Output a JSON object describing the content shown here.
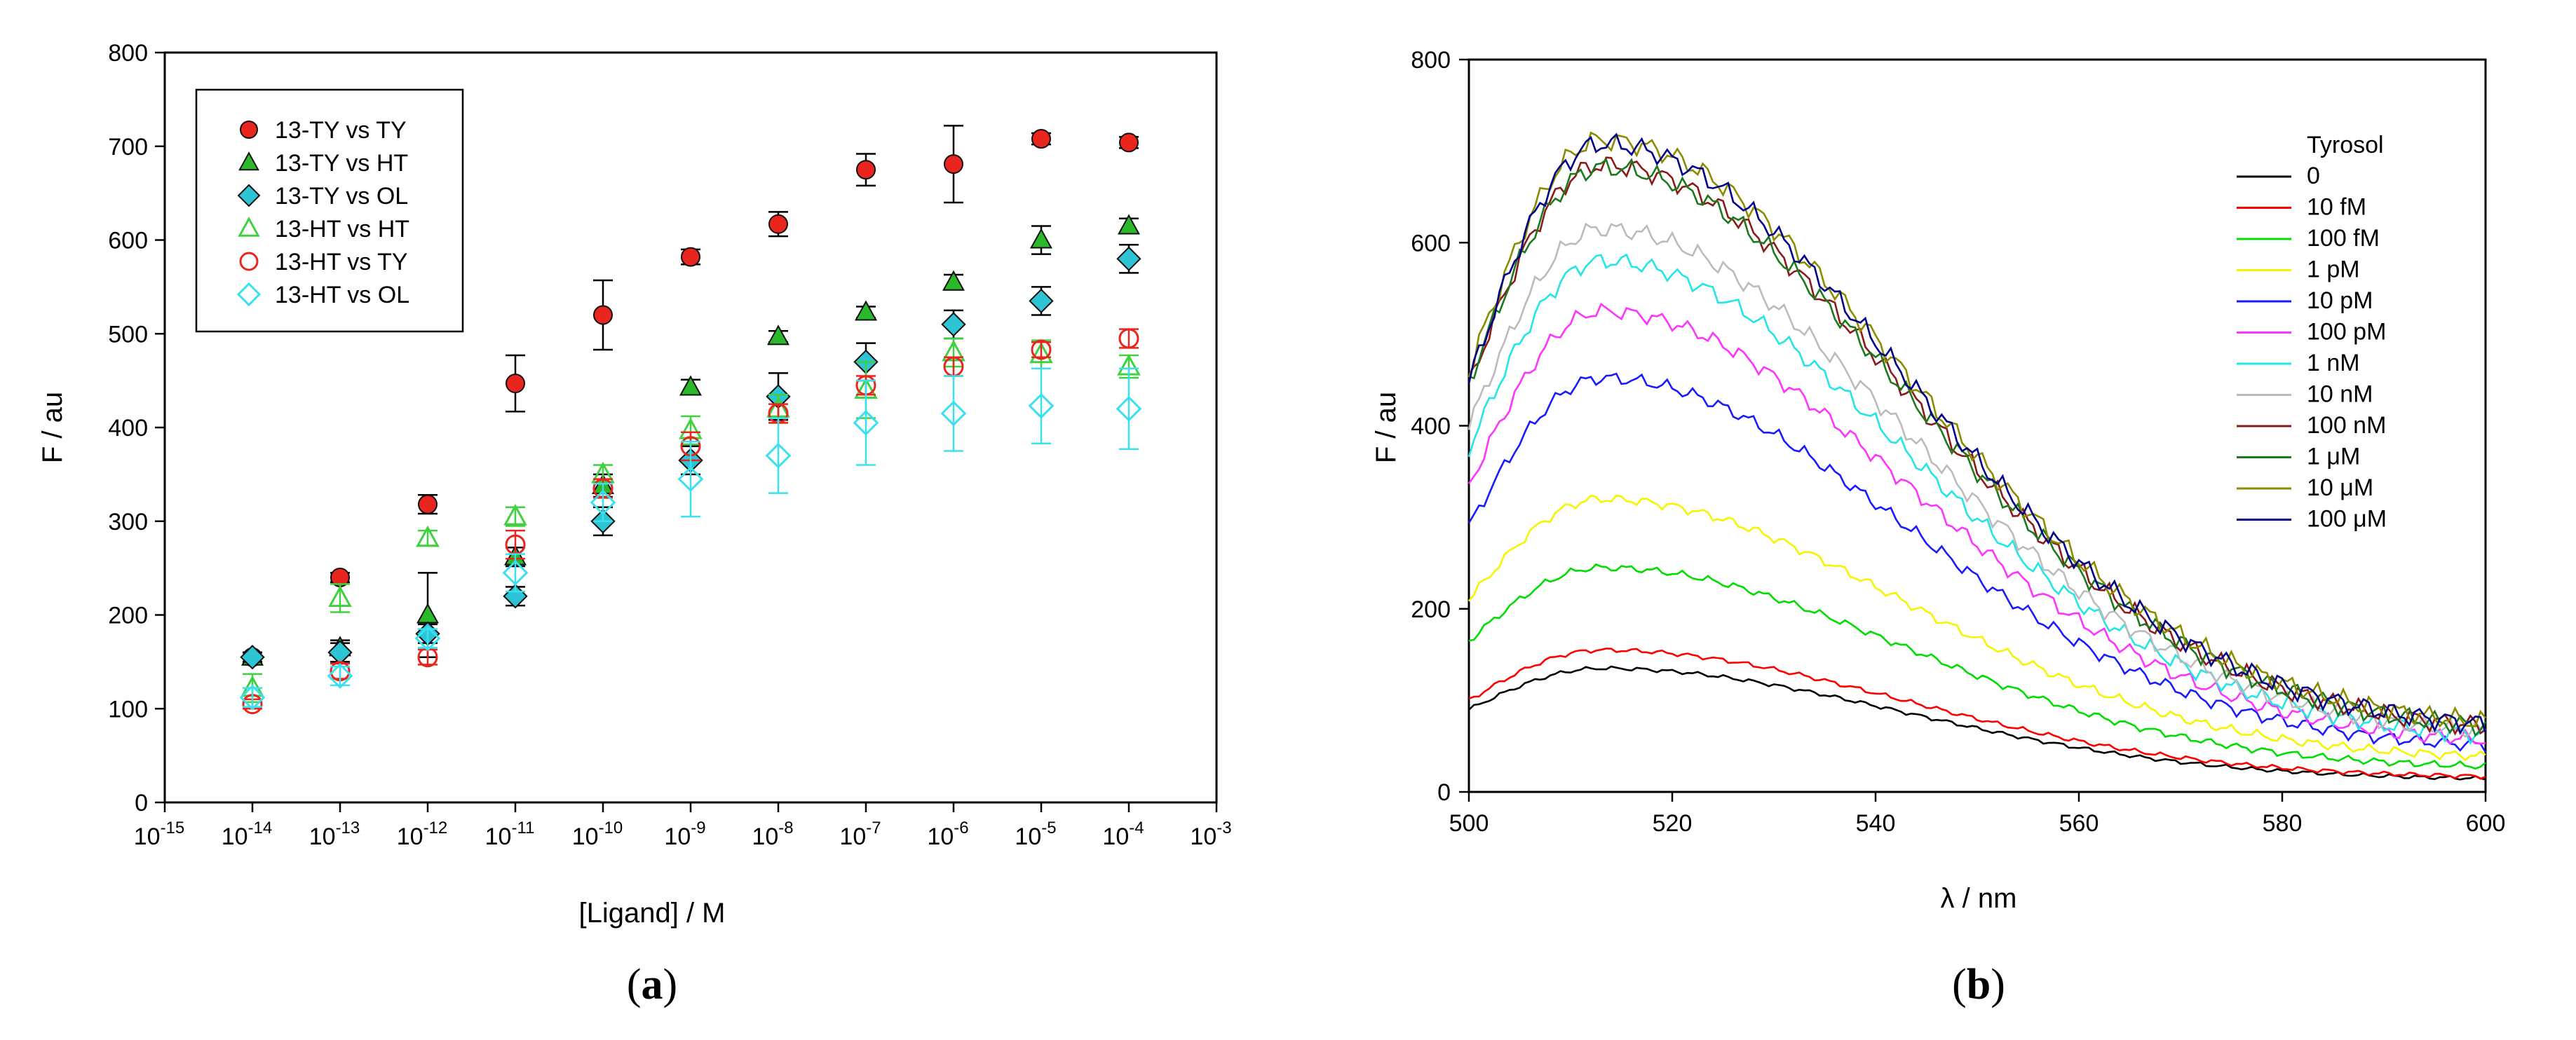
{
  "chart_data": [
    {
      "type": "scatter",
      "panel_label": "a",
      "title": "",
      "xlabel": "[Ligand] / M",
      "ylabel": "F / au",
      "xscale": "log",
      "x_exponent_ticks": [
        -15,
        -14,
        -13,
        -12,
        -11,
        -10,
        -9,
        -8,
        -7,
        -6,
        -5,
        -4,
        -3
      ],
      "xlim_exp": [
        -15,
        -3
      ],
      "ylim": [
        0,
        800
      ],
      "yticks": [
        0,
        100,
        200,
        300,
        400,
        500,
        600,
        700,
        800
      ],
      "legend_position": "top-left",
      "x": [
        1e-14,
        1e-13,
        1e-12,
        1e-11,
        1e-10,
        1e-09,
        1e-08,
        1e-07,
        1e-06,
        1e-05,
        0.0001
      ],
      "series": [
        {
          "name": "13-TY vs TY",
          "marker": "circle",
          "filled": true,
          "color": "#e8261e",
          "values": [
            155,
            240,
            318,
            447,
            520,
            582,
            617,
            675,
            681,
            708,
            704
          ],
          "errors": [
            5,
            5,
            10,
            30,
            37,
            8,
            13,
            17,
            41,
            6,
            6
          ]
        },
        {
          "name": "13-TY vs HT",
          "marker": "triangle",
          "filled": true,
          "color": "#2bb82b",
          "values": [
            155,
            165,
            200,
            262,
            338,
            443,
            497,
            523,
            555,
            600,
            615
          ],
          "errors": [
            5,
            8,
            45,
            10,
            12,
            8,
            6,
            6,
            8,
            15,
            8
          ]
        },
        {
          "name": "13-TY vs OL",
          "marker": "diamond",
          "filled": true,
          "color": "#2ec4d6",
          "values": [
            155,
            160,
            180,
            220,
            300,
            365,
            433,
            470,
            510,
            535,
            580
          ],
          "errors": [
            5,
            10,
            10,
            10,
            15,
            15,
            25,
            20,
            15,
            15,
            15
          ]
        },
        {
          "name": "13-HT vs HT",
          "marker": "triangle",
          "filled": false,
          "color": "#3fd13f",
          "values": [
            122,
            218,
            282,
            305,
            350,
            397,
            420,
            440,
            480,
            478,
            465
          ],
          "errors": [
            15,
            15,
            8,
            10,
            10,
            15,
            15,
            30,
            15,
            15,
            12
          ]
        },
        {
          "name": "13-HT vs TY",
          "marker": "circle",
          "filled": false,
          "color": "#e8261e",
          "values": [
            105,
            140,
            155,
            275,
            335,
            380,
            415,
            445,
            465,
            483,
            495
          ],
          "errors": [
            5,
            8,
            8,
            15,
            10,
            15,
            10,
            10,
            10,
            8,
            10
          ]
        },
        {
          "name": "13-HT vs OL",
          "marker": "diamond",
          "filled": false,
          "color": "#39e0f0",
          "values": [
            112,
            135,
            175,
            245,
            320,
            345,
            370,
            405,
            415,
            423,
            420
          ],
          "errors": [
            10,
            10,
            10,
            20,
            20,
            40,
            40,
            45,
            40,
            40,
            43
          ]
        }
      ]
    },
    {
      "type": "line",
      "panel_label": "b",
      "title": "",
      "xlabel": "λ / nm",
      "ylabel": "F / au",
      "xlim": [
        500,
        600
      ],
      "xticks": [
        500,
        520,
        540,
        560,
        580,
        600
      ],
      "ylim": [
        0,
        800
      ],
      "yticks": [
        0,
        200,
        400,
        600,
        800
      ],
      "legend_title": "Tyrosol",
      "legend_position": "top-right",
      "peak_wavelength_nm": 513,
      "series": [
        {
          "name": "0",
          "color": "#000000",
          "start": 90,
          "peak": 135,
          "end": 13
        },
        {
          "name": "10 fM",
          "color": "#ff0000",
          "start": 100,
          "peak": 155,
          "end": 15
        },
        {
          "name": "100 fM",
          "color": "#00dd00",
          "start": 165,
          "peak": 245,
          "end": 25
        },
        {
          "name": "1 pM",
          "color": "#f5f500",
          "start": 210,
          "peak": 320,
          "end": 35
        },
        {
          "name": "10 pM",
          "color": "#1a1aff",
          "start": 290,
          "peak": 452,
          "end": 45
        },
        {
          "name": "100 pM",
          "color": "#ff33ff",
          "start": 335,
          "peak": 525,
          "end": 50
        },
        {
          "name": "1 nM",
          "color": "#22e5e5",
          "start": 375,
          "peak": 580,
          "end": 55
        },
        {
          "name": "10 nM",
          "color": "#bbbbbb",
          "start": 400,
          "peak": 615,
          "end": 58
        },
        {
          "name": "100 nM",
          "color": "#8b1a1a",
          "start": 445,
          "peak": 685,
          "end": 63
        },
        {
          "name": "1 μM",
          "color": "#1b7a1b",
          "start": 448,
          "peak": 682,
          "end": 63
        },
        {
          "name": "10 μM",
          "color": "#8b8b00",
          "start": 460,
          "peak": 712,
          "end": 67
        },
        {
          "name": "100 μM",
          "color": "#00008b",
          "start": 448,
          "peak": 708,
          "end": 65
        }
      ]
    }
  ]
}
